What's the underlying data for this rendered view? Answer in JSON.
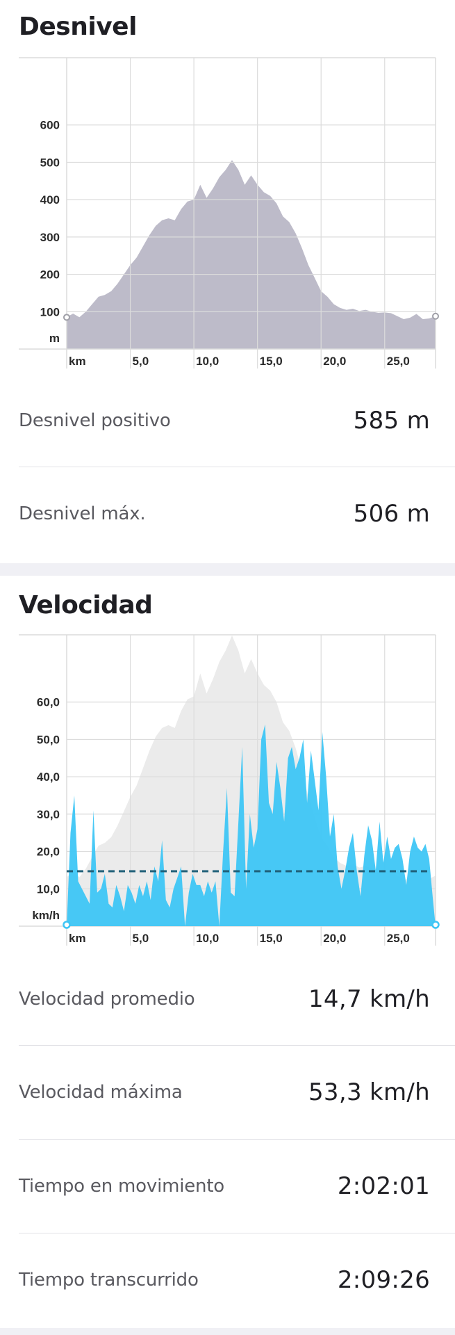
{
  "sections": {
    "elevation_title": "Desnivel",
    "speed_title": "Velocidad"
  },
  "elevation_stats": [
    {
      "label": "Desnivel positivo",
      "value": "585 m"
    },
    {
      "label": "Desnivel máx.",
      "value": "506 m"
    }
  ],
  "speed_stats": [
    {
      "label": "Velocidad promedio",
      "value": "14,7 km/h"
    },
    {
      "label": "Velocidad máxima",
      "value": "53,3 km/h"
    },
    {
      "label": "Tiempo en movimiento",
      "value": "2:02:01"
    },
    {
      "label": "Tiempo transcurrido",
      "value": "2:09:26"
    }
  ],
  "colors": {
    "elevation_fill": "#bcbac8",
    "speed_fill": "#3ec6f5",
    "speed_background": "#ebebeb",
    "average_line": "#1f5f78",
    "grid": "#dcdcdc",
    "section_band": "#f0f0f5"
  },
  "chart_data": [
    {
      "type": "area",
      "title": "",
      "x_unit": "km",
      "y_unit": "m",
      "xlim": [
        0,
        29
      ],
      "ylim": [
        0,
        700
      ],
      "x_ticks": [
        "5,0",
        "10,0",
        "15,0",
        "20,0",
        "25,0"
      ],
      "y_ticks": [
        "100",
        "200",
        "300",
        "400",
        "500",
        "600"
      ],
      "grid": true,
      "x": [
        0,
        0.5,
        1,
        1.5,
        2,
        2.5,
        3,
        3.5,
        4,
        4.5,
        5,
        5.5,
        6,
        6.5,
        7,
        7.5,
        8,
        8.5,
        9,
        9.5,
        10,
        10.5,
        11,
        11.5,
        12,
        12.5,
        13,
        13.5,
        14,
        14.5,
        15,
        15.5,
        16,
        16.5,
        17,
        17.5,
        18,
        18.5,
        19,
        19.5,
        20,
        20.5,
        21,
        21.5,
        22,
        22.5,
        23,
        23.5,
        24,
        24.5,
        25,
        25.5,
        26,
        26.5,
        27,
        27.5,
        28,
        28.5,
        29
      ],
      "series": [
        {
          "values": [
            85,
            95,
            85,
            100,
            120,
            140,
            145,
            155,
            175,
            200,
            225,
            245,
            275,
            305,
            330,
            345,
            350,
            345,
            375,
            395,
            400,
            440,
            405,
            430,
            460,
            480,
            506,
            480,
            440,
            465,
            440,
            420,
            410,
            390,
            355,
            340,
            310,
            270,
            225,
            190,
            155,
            140,
            120,
            110,
            105,
            108,
            102,
            105,
            100,
            97,
            98,
            96,
            88,
            80,
            84,
            94,
            80,
            82,
            88
          ]
        }
      ]
    },
    {
      "type": "area",
      "title": "",
      "x_unit": "km",
      "y_unit": "km/h",
      "xlim": [
        0,
        29
      ],
      "ylim": [
        0,
        70
      ],
      "x_ticks": [
        "5,0",
        "10,0",
        "15,0",
        "20,0",
        "25,0"
      ],
      "y_ticks": [
        "10,0",
        "20,0",
        "30,0",
        "40,0",
        "50,0",
        "60,0"
      ],
      "grid": true,
      "average": 14.7,
      "x": [
        0,
        0.3,
        0.6,
        0.9,
        1.2,
        1.5,
        1.8,
        2.1,
        2.4,
        2.7,
        3.0,
        3.3,
        3.6,
        3.9,
        4.2,
        4.5,
        4.8,
        5.1,
        5.4,
        5.7,
        6.0,
        6.3,
        6.6,
        6.9,
        7.2,
        7.5,
        7.8,
        8.1,
        8.4,
        8.7,
        9.0,
        9.3,
        9.6,
        9.9,
        10.2,
        10.5,
        10.8,
        11.1,
        11.4,
        11.7,
        12.0,
        12.3,
        12.6,
        12.9,
        13.2,
        13.5,
        13.8,
        14.1,
        14.4,
        14.7,
        15.0,
        15.3,
        15.6,
        15.9,
        16.2,
        16.5,
        16.8,
        17.1,
        17.4,
        17.7,
        18.0,
        18.3,
        18.6,
        18.9,
        19.2,
        19.5,
        19.8,
        20.1,
        20.4,
        20.7,
        21.0,
        21.3,
        21.6,
        21.9,
        22.2,
        22.5,
        22.8,
        23.1,
        23.4,
        23.7,
        24.0,
        24.3,
        24.6,
        24.9,
        25.2,
        25.5,
        25.8,
        26.1,
        26.4,
        26.7,
        27.0,
        27.3,
        27.6,
        27.9,
        28.2,
        28.5,
        28.8,
        29.0
      ],
      "series": [
        {
          "values": [
            0,
            25,
            35,
            12,
            10,
            8,
            6,
            31,
            9,
            10,
            14,
            6,
            5,
            11,
            8,
            4,
            11,
            9,
            6,
            11,
            8,
            12,
            7,
            16,
            12,
            23,
            7,
            5,
            10,
            13,
            16,
            0,
            9,
            14,
            11,
            11,
            8,
            12,
            9,
            12,
            0,
            20,
            37,
            9,
            8,
            28,
            48,
            10,
            30,
            21,
            26,
            50,
            54,
            33,
            30,
            44,
            37,
            28,
            45,
            48,
            42,
            45,
            50,
            33,
            47,
            39,
            31,
            52,
            40,
            24,
            30,
            16,
            10,
            15,
            21,
            25,
            15,
            8,
            19,
            27,
            23,
            15,
            28,
            17,
            24,
            18,
            21,
            22,
            18,
            11,
            20,
            24,
            21,
            20,
            22,
            18,
            7,
            0
          ]
        }
      ]
    }
  ]
}
